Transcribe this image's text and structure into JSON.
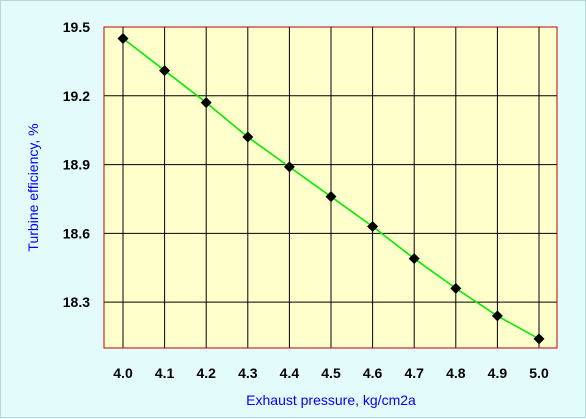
{
  "chart_data": {
    "type": "line",
    "title": "",
    "xlabel": "Exhaust pressure, kg/cm2a",
    "ylabel": "Turbine efficiency, %",
    "x": [
      4.0,
      4.1,
      4.2,
      4.3,
      4.4,
      4.5,
      4.6,
      4.7,
      4.8,
      4.9,
      5.0
    ],
    "x_tick_labels": [
      "4.0",
      "4.1",
      "4.2",
      "4.3",
      "4.4",
      "4.5",
      "4.6",
      "4.7",
      "4.8",
      "4.9",
      "5.0"
    ],
    "y_tick_values": [
      18.3,
      18.6,
      18.9,
      19.2,
      19.5
    ],
    "y_tick_labels": [
      "18.3",
      "18.6",
      "18.9",
      "19.2",
      "19.5"
    ],
    "xlim": [
      3.95,
      5.05
    ],
    "ylim": [
      18.1,
      19.5
    ],
    "grid": true,
    "legend": "none",
    "series": [
      {
        "values": [
          19.45,
          19.31,
          19.17,
          19.02,
          18.89,
          18.76,
          18.63,
          18.49,
          18.36,
          18.24,
          18.14
        ],
        "line_color": "#00ee00",
        "marker": "diamond",
        "marker_color": "#000000"
      }
    ],
    "colors": {
      "background": "#e4fbfc",
      "plot_background": "#ffffcc",
      "grid": "#000000",
      "plot_frame": "#c00000",
      "axis_title": "#0000ff"
    }
  }
}
